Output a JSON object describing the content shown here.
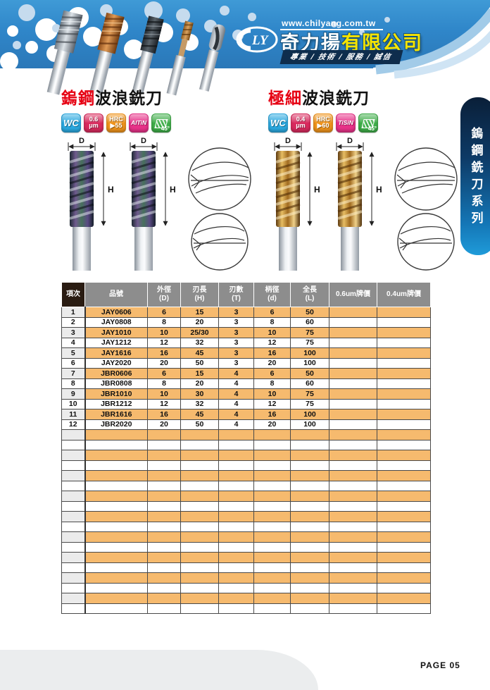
{
  "header": {
    "url": "www.chilyang.com.tw",
    "logo_text": "LY",
    "company_white": "奇力揚",
    "company_yellow": "有限公司",
    "tagline": "專業 / 技術 / 服務 / 誠信"
  },
  "sidebar": {
    "label": "鎢鋼銑刀系列"
  },
  "sections": [
    {
      "title_red": "鎢鋼",
      "title_black": "波浪銑刀",
      "dim_d": "D",
      "dim_h": "H",
      "badges": [
        {
          "name": "material-wc",
          "text": "WC",
          "color": "#2BA9E0"
        },
        {
          "name": "grain-size",
          "line1": "0.6",
          "line2": "μm",
          "color": "#D92B5E"
        },
        {
          "name": "hardness",
          "line1": "HRC",
          "line2": "▶55",
          "color": "#F0941C"
        },
        {
          "name": "coating",
          "text": "AlTiN",
          "color": "#E83289"
        },
        {
          "name": "helix-angle",
          "text": "45°",
          "color": "#3FAE49"
        }
      ]
    },
    {
      "title_red": "極細",
      "title_black": "波浪銑刀",
      "dim_d": "D",
      "dim_h": "H",
      "badges": [
        {
          "name": "material-wc",
          "text": "WC",
          "color": "#2BA9E0"
        },
        {
          "name": "grain-size",
          "line1": "0.4",
          "line2": "μm",
          "color": "#D92B5E"
        },
        {
          "name": "hardness",
          "line1": "HRC",
          "line2": "▶60",
          "color": "#F0941C"
        },
        {
          "name": "coating",
          "text": "TiSiN",
          "color": "#E83289"
        },
        {
          "name": "helix-angle",
          "text": "45°",
          "color": "#3FAE49"
        }
      ]
    }
  ],
  "table": {
    "columns": [
      {
        "l1": "項次"
      },
      {
        "l1": "品號"
      },
      {
        "l1": "外徑",
        "l2": "(D)"
      },
      {
        "l1": "刃長",
        "l2": "(H)"
      },
      {
        "l1": "刃數",
        "l2": "(T)"
      },
      {
        "l1": "柄徑",
        "l2": "(d)"
      },
      {
        "l1": "全長",
        "l2": "(L)"
      },
      {
        "l1": "0.6um牌價"
      },
      {
        "l1": "0.4um牌價"
      }
    ],
    "rows": [
      [
        "1",
        "JAY0606",
        "6",
        "15",
        "3",
        "6",
        "50",
        "",
        ""
      ],
      [
        "2",
        "JAY0808",
        "8",
        "20",
        "3",
        "8",
        "60",
        "",
        ""
      ],
      [
        "3",
        "JAY1010",
        "10",
        "25/30",
        "3",
        "10",
        "75",
        "",
        ""
      ],
      [
        "4",
        "JAY1212",
        "12",
        "32",
        "3",
        "12",
        "75",
        "",
        ""
      ],
      [
        "5",
        "JAY1616",
        "16",
        "45",
        "3",
        "16",
        "100",
        "",
        ""
      ],
      [
        "6",
        "JAY2020",
        "20",
        "50",
        "3",
        "20",
        "100",
        "",
        ""
      ],
      [
        "7",
        "JBR0606",
        "6",
        "15",
        "4",
        "6",
        "50",
        "",
        ""
      ],
      [
        "8",
        "JBR0808",
        "8",
        "20",
        "4",
        "8",
        "60",
        "",
        ""
      ],
      [
        "9",
        "JBR1010",
        "10",
        "30",
        "4",
        "10",
        "75",
        "",
        ""
      ],
      [
        "10",
        "JBR1212",
        "12",
        "32",
        "4",
        "12",
        "75",
        "",
        ""
      ],
      [
        "11",
        "JBR1616",
        "16",
        "45",
        "4",
        "16",
        "100",
        "",
        ""
      ],
      [
        "12",
        "JBR2020",
        "20",
        "50",
        "4",
        "20",
        "100",
        "",
        ""
      ]
    ],
    "empty_rows": 18
  },
  "footer": {
    "page_label": "PAGE 05"
  },
  "colors": {
    "banner_blue": "#2F86C9",
    "title_red": "#E60012",
    "table_header_gray": "#8D8D8D",
    "table_header_dark": "#2A1C12",
    "row_orange": "#F6BA6E",
    "index_gray": "#EBEBEB",
    "sidebar_navy_top": "#0A1F38",
    "sidebar_blue_bottom": "#1F9BD9",
    "company_yellow": "#F5E400",
    "footer_gray": "#EBEDEE"
  }
}
